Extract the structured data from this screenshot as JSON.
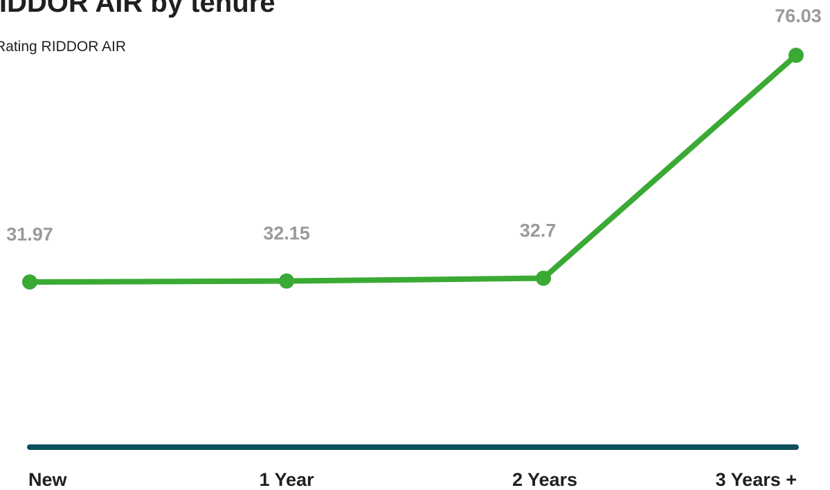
{
  "chart_data": {
    "type": "line",
    "title": "RIDDOR AIR by tenure",
    "subtitle": "Rating RIDDOR AIR",
    "categories": [
      "New",
      "1 Year",
      "2 Years",
      "3 Years +"
    ],
    "series": [
      {
        "values": [
          31.97,
          32.15,
          32.7,
          76.03
        ]
      }
    ],
    "data_labels": [
      "31.97",
      "32.15",
      "32.7",
      "76.03"
    ],
    "xlabel": "",
    "ylabel": "",
    "ylim": [
      0,
      100
    ],
    "grid": false,
    "legend": "none",
    "colors": {
      "line": "#3aaa35",
      "axis": "#0d4f5c",
      "data_label": "#9a9a9a",
      "tick_label": "#1f1f1f",
      "title": "#1f1f1f"
    }
  }
}
